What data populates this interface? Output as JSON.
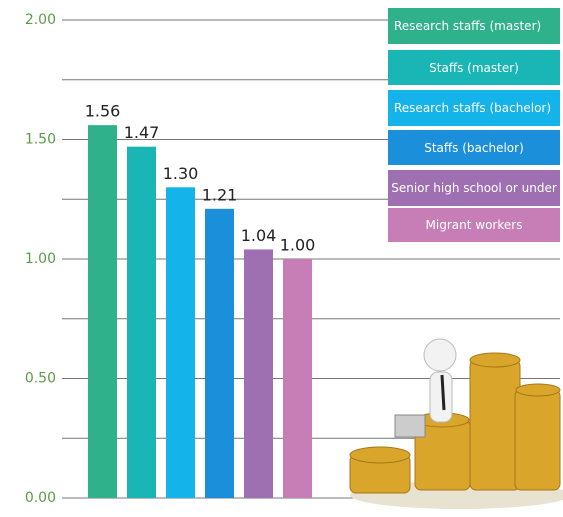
{
  "chart_data": {
    "type": "bar",
    "categories": [
      "Research staffs (master)",
      "Staffs (master)",
      "Research staffs (bachelor)",
      "Staffs (bachelor)",
      "Senior high school or under",
      "Migrant workers"
    ],
    "values": [
      1.56,
      1.47,
      1.3,
      1.21,
      1.04,
      1.0
    ],
    "value_labels": [
      "1.56",
      "1.47",
      "1.30",
      "1.21",
      "1.04",
      "1.00"
    ],
    "colors": [
      "#2fb18b",
      "#1ab6b6",
      "#14b3ea",
      "#1b8fd9",
      "#9e70b2",
      "#c77eb6"
    ],
    "ylim": [
      0,
      2
    ],
    "yticks": [
      {
        "value": 0,
        "label": "0.00"
      },
      {
        "value": 0.5,
        "label": "0.50"
      },
      {
        "value": 1,
        "label": "1.00"
      },
      {
        "value": 1.5,
        "label": "1.50"
      },
      {
        "value": 2,
        "label": "2.00"
      }
    ],
    "grid": true,
    "legend": "top-right"
  }
}
